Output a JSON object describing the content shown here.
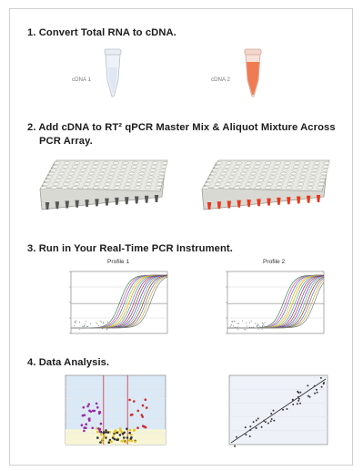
{
  "steps": [
    {
      "title": "1.  Convert Total RNA to cDNA."
    },
    {
      "title_line1": "2.  Add cDNA to RT² qPCR Master Mix & Aliquot Mixture Across",
      "title_line2": "PCR Array."
    },
    {
      "title": "3.  Run in Your Real-Time PCR Instrument."
    },
    {
      "title": "4.  Data Analysis."
    }
  ],
  "tubes": [
    {
      "label": "cDNA 1",
      "color": "#e8eef8",
      "icon": "microcentrifuge-tube-icon"
    },
    {
      "label": "cDNA 2",
      "color": "#f07a52",
      "icon": "microcentrifuge-tube-icon"
    }
  ],
  "plates": [
    {
      "name": "pcr-plate-1",
      "well_bottom_color": "#555555",
      "icon": "96-well-plate-icon"
    },
    {
      "name": "pcr-plate-2",
      "well_bottom_color": "#e8391c",
      "icon": "96-well-plate-icon"
    }
  ],
  "profiles": [
    {
      "label": "Profile 1"
    },
    {
      "label": "Profile 2"
    }
  ],
  "colors": {
    "volcano_background": "#dbe8f6",
    "threshold_line": "#cc3333",
    "scatter_line": "#333333"
  }
}
